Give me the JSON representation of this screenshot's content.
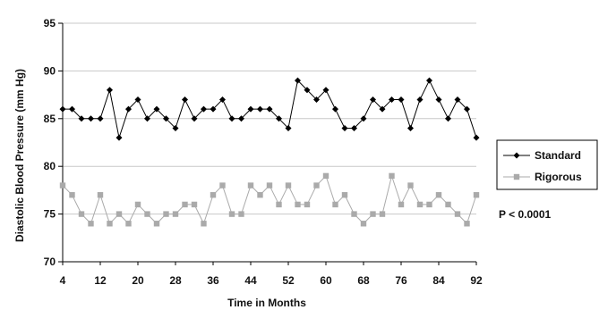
{
  "chart_data": {
    "type": "line",
    "title": "",
    "xlabel": "Time in Months",
    "ylabel": "Diastolic Blood Pressure (mm Hg)",
    "ylim": [
      70,
      95
    ],
    "y_ticks": [
      70,
      75,
      80,
      85,
      90,
      95
    ],
    "x_ticks": [
      4,
      12,
      20,
      28,
      36,
      44,
      52,
      60,
      68,
      76,
      84,
      92
    ],
    "xlim": [
      4,
      92
    ],
    "grid": "horizontal",
    "legend_position": "right",
    "annotation": "P < 0.0001",
    "x": [
      4,
      6,
      8,
      10,
      12,
      14,
      16,
      18,
      20,
      22,
      24,
      26,
      28,
      30,
      32,
      34,
      36,
      38,
      40,
      42,
      44,
      46,
      48,
      50,
      52,
      54,
      56,
      58,
      60,
      62,
      64,
      66,
      68,
      70,
      72,
      74,
      76,
      78,
      80,
      82,
      84,
      86,
      88,
      90,
      92
    ],
    "series": [
      {
        "name": "Standard",
        "color": "#000000",
        "marker": "diamond",
        "values": [
          86,
          86,
          85,
          85,
          85,
          88,
          83,
          86,
          87,
          85,
          86,
          85,
          84,
          87,
          85,
          86,
          86,
          87,
          85,
          85,
          86,
          86,
          86,
          85,
          84,
          89,
          88,
          87,
          88,
          86,
          84,
          84,
          85,
          87,
          86,
          87,
          87,
          84,
          87,
          89,
          87,
          85,
          87,
          86,
          83
        ]
      },
      {
        "name": "Rigorous",
        "color": "#aaaaaa",
        "marker": "square",
        "values": [
          78,
          77,
          75,
          74,
          77,
          74,
          75,
          74,
          76,
          75,
          74,
          75,
          75,
          76,
          76,
          74,
          77,
          78,
          75,
          75,
          78,
          77,
          78,
          76,
          78,
          76,
          76,
          78,
          79,
          76,
          77,
          75,
          74,
          75,
          75,
          79,
          76,
          78,
          76,
          76,
          77,
          76,
          75,
          74,
          77
        ]
      }
    ]
  }
}
